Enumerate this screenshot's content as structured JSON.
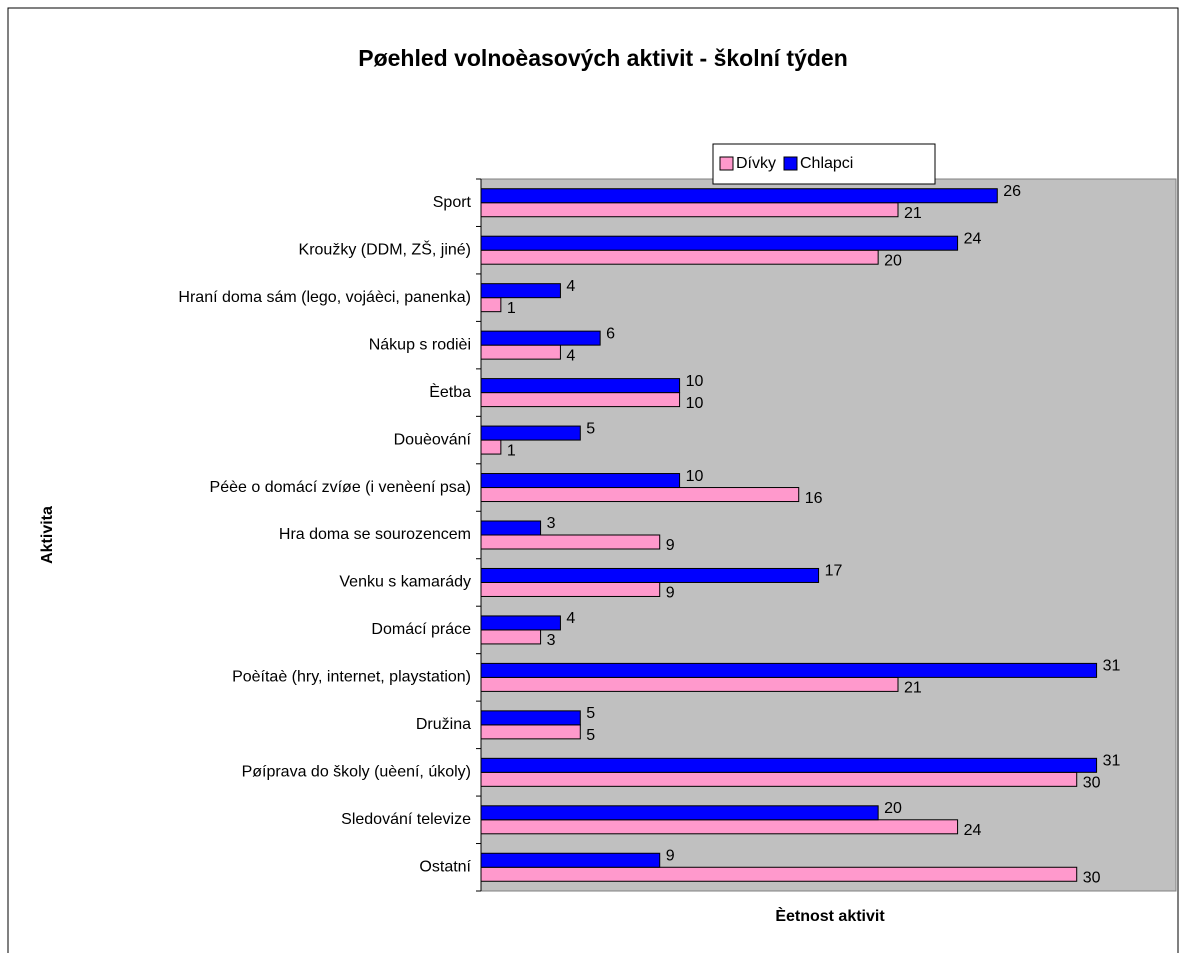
{
  "chart_data": {
    "type": "bar",
    "orientation": "horizontal",
    "title": "Pøehled volnoèasových aktivit - školní týden",
    "xlabel": "Èetnost aktivit",
    "ylabel": "Aktivita",
    "categories": [
      "Sport",
      "Kroužky (DDM, ZŠ, jiné)",
      "Hraní doma sám (lego, vojáèci, panenka)",
      "Nákup s rodièi",
      "Èetba",
      "Douèování",
      "Péèe o domácí zvíøe (i venèení psa)",
      "Hra doma se sourozencem",
      "Venku s kamarády",
      "Domácí práce",
      "Poèítaè (hry, internet, playstation)",
      "Družina",
      "Pøíprava do školy (uèení, úkoly)",
      "Sledování televize",
      "Ostatní"
    ],
    "series": [
      {
        "name": "Dívky",
        "color": "#ff99cc",
        "values": [
          21,
          20,
          1,
          4,
          10,
          1,
          16,
          9,
          9,
          3,
          21,
          5,
          30,
          24,
          30
        ]
      },
      {
        "name": "Chlapci",
        "color": "#0000ff",
        "values": [
          26,
          24,
          4,
          6,
          10,
          5,
          10,
          3,
          17,
          4,
          31,
          5,
          31,
          20,
          9
        ]
      }
    ],
    "xlim": [
      0,
      35
    ],
    "legend": "top"
  }
}
